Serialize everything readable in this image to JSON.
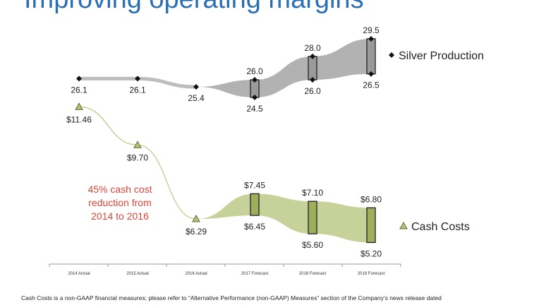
{
  "page": {
    "title": "Improving operating margins",
    "footnote": "Cash Costs is a non-GAAP financial measures; please refer to “Alternative Performance (non-GAAP) Measures” section of the Company’s news release dated"
  },
  "chart_data": {
    "type": "line",
    "categories": [
      "2014 Actual",
      "2015 Actual",
      "2016 Actual",
      "2017 Forecast",
      "2018 Forecast",
      "2019 Forecast"
    ],
    "series": [
      {
        "name": "Silver Production",
        "color": "#111111",
        "marker": "diamond",
        "actual": [
          26.1,
          26.1,
          25.4,
          null,
          null,
          null
        ],
        "high": [
          null,
          null,
          null,
          26.0,
          28.0,
          29.5
        ],
        "low": [
          null,
          null,
          null,
          24.5,
          26.0,
          26.5
        ],
        "labels": {
          "actual": [
            "26.1",
            "26.1",
            "25.4"
          ],
          "high": [
            "26.0",
            "28.0",
            "29.5"
          ],
          "low": [
            "24.5",
            "26.0",
            "26.5"
          ]
        }
      },
      {
        "name": "Cash Costs",
        "color": "#8a9a4a",
        "marker": "triangle",
        "actual": [
          11.46,
          9.7,
          6.29,
          null,
          null,
          null
        ],
        "high": [
          null,
          null,
          null,
          7.45,
          7.1,
          6.8
        ],
        "low": [
          null,
          null,
          null,
          6.45,
          5.6,
          5.2
        ],
        "labels": {
          "actual": [
            "$11.46",
            "$9.70",
            "$6.29"
          ],
          "high": [
            "$7.45",
            "$7.10",
            "$6.80"
          ],
          "low": [
            "$6.45",
            "$5.60",
            "$5.20"
          ]
        }
      }
    ],
    "annotation": [
      "45% cash cost",
      "reduction from",
      "2014 to 2016"
    ],
    "legend_position": "right"
  }
}
